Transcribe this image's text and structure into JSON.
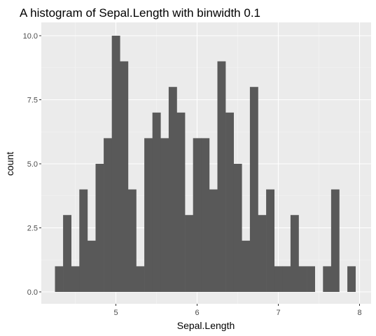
{
  "chart_data": {
    "type": "bar",
    "title": "A histogram of Sepal.Length with binwidth 0.1",
    "xlabel": "Sepal.Length",
    "ylabel": "count",
    "binwidth": 0.1,
    "xlim": [
      4.2,
      8.0
    ],
    "ylim": [
      0,
      10
    ],
    "x_ticks": [
      5,
      6,
      7,
      8
    ],
    "x_tick_labels": [
      "5",
      "6",
      "7",
      "8"
    ],
    "y_ticks": [
      0,
      2.5,
      5,
      7.5,
      10
    ],
    "y_tick_labels": [
      "0.0",
      "2.5",
      "5.0",
      "7.5",
      "10.0"
    ],
    "bin_left_edges": [
      4.25,
      4.35,
      4.45,
      4.55,
      4.65,
      4.75,
      4.85,
      4.95,
      5.05,
      5.15,
      5.25,
      5.35,
      5.45,
      5.55,
      5.65,
      5.75,
      5.85,
      5.95,
      6.05,
      6.15,
      6.25,
      6.35,
      6.45,
      6.55,
      6.65,
      6.75,
      6.85,
      6.95,
      7.05,
      7.15,
      7.25,
      7.35,
      7.45,
      7.55,
      7.65,
      7.75,
      7.85
    ],
    "values": [
      1,
      3,
      1,
      4,
      2,
      5,
      6,
      10,
      9,
      4,
      1,
      6,
      7,
      6,
      8,
      7,
      3,
      6,
      6,
      4,
      9,
      7,
      5,
      2,
      8,
      3,
      4,
      1,
      1,
      3,
      1,
      1,
      0,
      1,
      4,
      0,
      1
    ],
    "grid": true,
    "colors": {
      "bar_fill": "#595959",
      "panel_background": "#ebebeb",
      "grid_major": "#ffffff",
      "grid_minor": "#f5f5f5"
    }
  }
}
